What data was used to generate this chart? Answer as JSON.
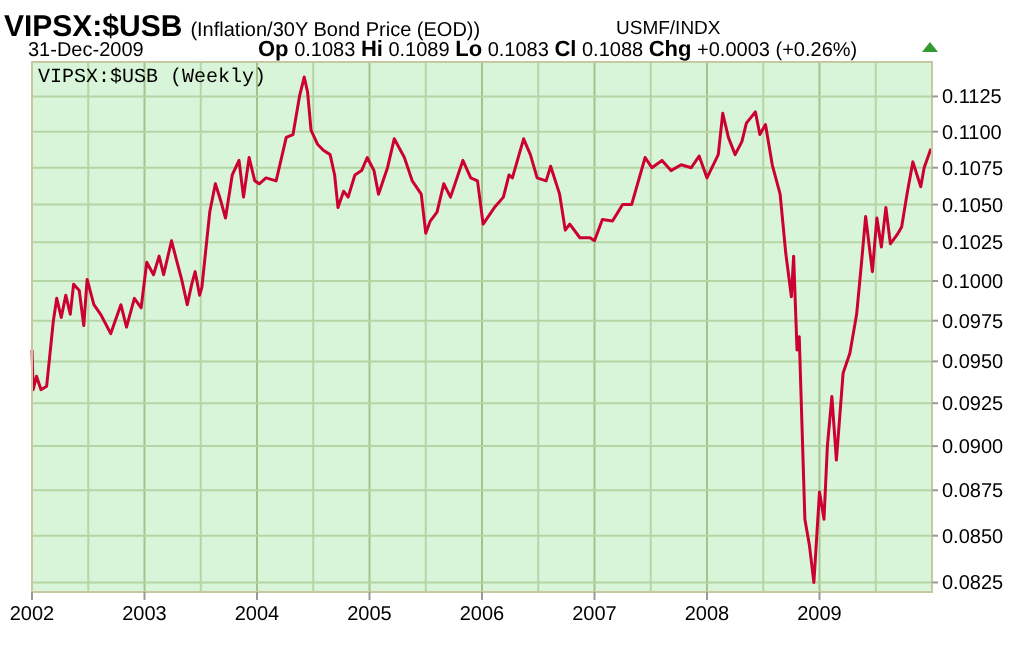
{
  "chart_data": {
    "type": "line",
    "title": "VIPSX:$USB",
    "subtitle": "(Inflation/30Y Bond Price (EOD))",
    "annotations": [
      "USMF/INDX",
      "31-Dec-2009",
      "Op 0.1083 Hi 0.1089 Lo 0.1083 Cl 0.1088 Chg +0.0003 (+0.26%)",
      "VIPSX:$USB (Weekly)"
    ],
    "x": [
      2002.0,
      2002.01,
      2002.04,
      2002.08,
      2002.13,
      2002.19,
      2002.22,
      2002.26,
      2002.3,
      2002.34,
      2002.37,
      2002.42,
      2002.46,
      2002.49,
      2002.55,
      2002.61,
      2002.7,
      2002.79,
      2002.84,
      2002.91,
      2002.97,
      2003.02,
      2003.08,
      2003.13,
      2003.17,
      2003.24,
      2003.29,
      2003.33,
      2003.38,
      2003.42,
      2003.45,
      2003.49,
      2003.51,
      2003.58,
      2003.63,
      2003.68,
      2003.72,
      2003.78,
      2003.84,
      2003.88,
      2003.93,
      2003.98,
      2004.02,
      2004.08,
      2004.17,
      2004.26,
      2004.32,
      2004.38,
      2004.42,
      2004.45,
      2004.48,
      2004.54,
      2004.59,
      2004.65,
      2004.69,
      2004.72,
      2004.77,
      2004.81,
      2004.87,
      2004.93,
      2004.98,
      2005.04,
      2005.08,
      2005.16,
      2005.22,
      2005.31,
      2005.38,
      2005.46,
      2005.5,
      2005.54,
      2005.6,
      2005.66,
      2005.72,
      2005.83,
      2005.9,
      2005.96,
      2006.01,
      2006.11,
      2006.19,
      2006.24,
      2006.27,
      2006.37,
      2006.43,
      2006.49,
      2006.57,
      2006.61,
      2006.69,
      2006.74,
      2006.78,
      2006.87,
      2006.96,
      2007.0,
      2007.07,
      2007.16,
      2007.25,
      2007.33,
      2007.45,
      2007.51,
      2007.6,
      2007.68,
      2007.77,
      2007.86,
      2007.93,
      2008.0,
      2008.1,
      2008.14,
      2008.19,
      2008.25,
      2008.31,
      2008.35,
      2008.43,
      2008.47,
      2008.52,
      2008.58,
      2008.65,
      2008.7,
      2008.75,
      2008.77,
      2008.8,
      2008.82,
      2008.87,
      2008.91,
      2008.95,
      2009.0,
      2009.04,
      2009.07,
      2009.11,
      2009.15,
      2009.21,
      2009.27,
      2009.33,
      2009.37,
      2009.41,
      2009.47,
      2009.51,
      2009.55,
      2009.59,
      2009.63,
      2009.69,
      2009.73,
      2009.78,
      2009.83,
      2009.9,
      2009.93,
      2009.99
    ],
    "series": [
      {
        "color": "#cc0033",
        "values": [
          0.0957,
          0.0933,
          0.0941,
          0.0933,
          0.0935,
          0.0975,
          0.0989,
          0.0977,
          0.0991,
          0.0979,
          0.0998,
          0.0994,
          0.0972,
          0.1001,
          0.0985,
          0.0979,
          0.0967,
          0.0985,
          0.0971,
          0.0989,
          0.0983,
          0.1012,
          0.1004,
          0.1016,
          0.1004,
          0.1026,
          0.1012,
          0.1001,
          0.0985,
          0.0998,
          0.1006,
          0.0991,
          0.0996,
          0.1045,
          0.1064,
          0.1052,
          0.1041,
          0.107,
          0.108,
          0.1055,
          0.1082,
          0.1066,
          0.1064,
          0.1068,
          0.1066,
          0.1096,
          0.1098,
          0.1126,
          0.1139,
          0.1128,
          0.1101,
          0.1091,
          0.1087,
          0.1084,
          0.107,
          0.1048,
          0.1059,
          0.1055,
          0.107,
          0.1073,
          0.1082,
          0.1073,
          0.1057,
          0.1075,
          0.1095,
          0.1082,
          0.1066,
          0.1057,
          0.1031,
          0.1039,
          0.1045,
          0.1064,
          0.1055,
          0.108,
          0.1068,
          0.1066,
          0.1037,
          0.1048,
          0.1055,
          0.107,
          0.1068,
          0.1095,
          0.1084,
          0.1068,
          0.1066,
          0.1076,
          0.1057,
          0.1033,
          0.1037,
          0.1028,
          0.1028,
          0.1026,
          0.104,
          0.1039,
          0.105,
          0.105,
          0.1082,
          0.1075,
          0.108,
          0.1073,
          0.1077,
          0.1075,
          0.1083,
          0.1068,
          0.1084,
          0.1113,
          0.1096,
          0.1084,
          0.1093,
          0.1106,
          0.1114,
          0.1098,
          0.1105,
          0.1077,
          0.1057,
          0.1018,
          0.099,
          0.1016,
          0.0957,
          0.0965,
          0.0859,
          0.0845,
          0.0825,
          0.0874,
          0.0859,
          0.09,
          0.0929,
          0.0892,
          0.0943,
          0.0955,
          0.0979,
          0.1009,
          0.1042,
          0.1006,
          0.1041,
          0.1022,
          0.1048,
          0.1024,
          0.103,
          0.1035,
          0.1058,
          0.1079,
          0.1062,
          0.1075,
          0.1088
        ]
      }
    ],
    "xlim": [
      2002,
      2010
    ],
    "xticks": [
      2002,
      2003,
      2004,
      2005,
      2006,
      2007,
      2008,
      2009
    ],
    "ylim": [
      0.082,
      0.115
    ],
    "yticks": [
      {
        "value": 0.0825,
        "label": "0.0825"
      },
      {
        "value": 0.085,
        "label": "0.0850"
      },
      {
        "value": 0.0875,
        "label": "0.0875"
      },
      {
        "value": 0.09,
        "label": "0.0900"
      },
      {
        "value": 0.0925,
        "label": "0.0925"
      },
      {
        "value": 0.095,
        "label": "0.0950"
      },
      {
        "value": 0.0975,
        "label": "0.0975"
      },
      {
        "value": 0.1,
        "label": "0.1000"
      },
      {
        "value": 0.1025,
        "label": "0.1025"
      },
      {
        "value": 0.105,
        "label": "0.1050"
      },
      {
        "value": 0.1075,
        "label": "0.1075"
      },
      {
        "value": 0.11,
        "label": "0.1100"
      },
      {
        "value": 0.1125,
        "label": "0.1125"
      }
    ],
    "log": true,
    "grid": true,
    "marker": "none",
    "line_style": "solid"
  }
}
